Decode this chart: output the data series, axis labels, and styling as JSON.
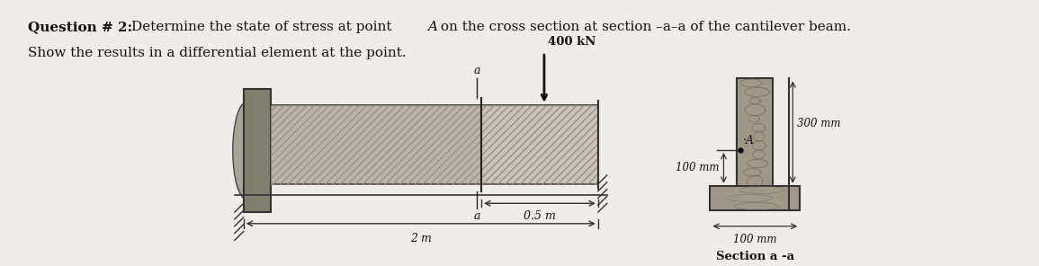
{
  "paper_bg": "#f0ede8",
  "title_bold_part": "Question # 2: ",
  "title_normal": "Determine the state of stress at point ",
  "title_A_italic": "A",
  "title_normal2": " on the cross section at section ",
  "title_aa": "a–a",
  "title_normal3": " of the cantilever beam.",
  "title_line2": "Show the results in a differential element at the point.",
  "force_label": "400 kN",
  "dim_2m": "2 m",
  "dim_05m": "0.5 m",
  "label_300mm": "300 mm",
  "label_100mm_left": "100 mm",
  "label_100mm_bot": "100 mm",
  "label_section": "Section a -a",
  "label_A": "·A",
  "section_a_top": "a",
  "section_a_bot": "a",
  "colors": {
    "bg": "#f0ede8",
    "beam_fill": "#b8b4aa",
    "beam_hatch": "#888070",
    "wall_fill": "#808070",
    "wall_oval": "#a8a498",
    "section_right_fill": "#c8c0b0",
    "cross_fill": "#a09888",
    "cross_wood": "#706050",
    "flange_fill": "#a09888",
    "text": "#111111",
    "dim_line": "#222222",
    "arrow": "#111111"
  }
}
